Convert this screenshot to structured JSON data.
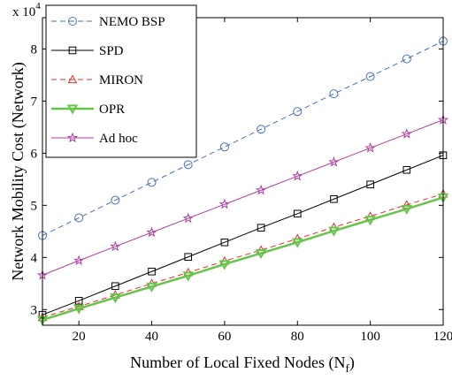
{
  "chart_data": {
    "type": "line",
    "xlabel": "Number of Local Fixed Nodes (N",
    "xlabel_subscript": "f",
    "xlabel_close": ")",
    "ylabel": "Network Mobility Cost (Network)",
    "y_multiplier": "x 10",
    "y_multiplier_exponent": "4",
    "xlim": [
      10,
      120
    ],
    "ylim": [
      2.7,
      8.6
    ],
    "xticks": [
      20,
      40,
      60,
      80,
      100,
      120
    ],
    "yticks": [
      3,
      4,
      5,
      6,
      7,
      8
    ],
    "grid": false,
    "legend_position": "top-left",
    "x": [
      10,
      20,
      30,
      40,
      50,
      60,
      70,
      80,
      90,
      100,
      110,
      120
    ],
    "series": [
      {
        "name": "NEMO BSP",
        "color": "#4a6fc0",
        "dash": "dashed",
        "marker": "circle",
        "values": [
          4.42,
          4.76,
          5.1,
          5.44,
          5.78,
          6.12,
          6.46,
          6.8,
          7.14,
          7.47,
          7.81,
          8.15
        ]
      },
      {
        "name": "SPD",
        "color": "#000000",
        "dash": "solid",
        "marker": "square",
        "values": [
          2.9,
          3.17,
          3.45,
          3.73,
          4.01,
          4.29,
          4.57,
          4.84,
          5.12,
          5.4,
          5.68,
          5.96
        ]
      },
      {
        "name": "MIRON",
        "color": "#e0302a",
        "dash": "dashed",
        "marker": "triangle-up",
        "values": [
          2.85,
          3.06,
          3.28,
          3.5,
          3.71,
          3.93,
          4.14,
          4.36,
          4.58,
          4.79,
          5.01,
          5.22
        ]
      },
      {
        "name": "OPR",
        "color": "#66c44a",
        "dash": "solid",
        "marker": "triangle-down",
        "values": [
          2.8,
          3.02,
          3.23,
          3.44,
          3.65,
          3.87,
          4.08,
          4.29,
          4.51,
          4.72,
          4.93,
          5.15
        ]
      },
      {
        "name": "Ad hoc",
        "color": "#b0409f",
        "dash": "solid",
        "marker": "star",
        "values": [
          3.66,
          3.94,
          4.21,
          4.48,
          4.75,
          5.02,
          5.29,
          5.56,
          5.83,
          6.1,
          6.37,
          6.64
        ]
      }
    ]
  }
}
